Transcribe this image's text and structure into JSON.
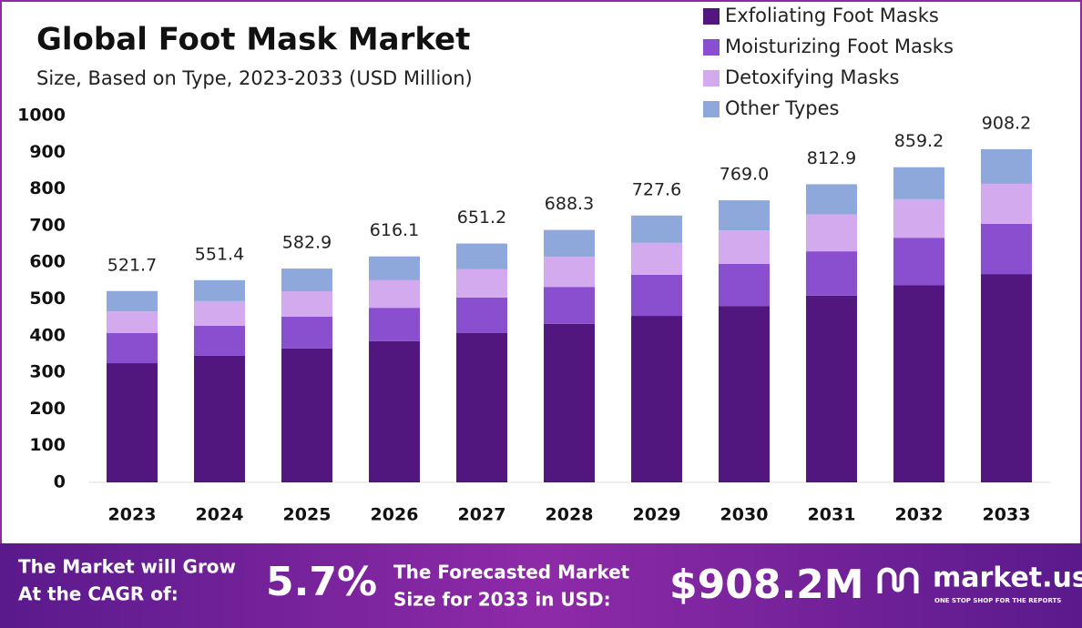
{
  "chart_data": {
    "type": "stacked_bar",
    "title": "Global Foot Mask Market",
    "subtitle": "Size, Based on Type, 2023-2033 (USD Million)",
    "categories": [
      "2023",
      "2024",
      "2025",
      "2026",
      "2027",
      "2028",
      "2029",
      "2030",
      "2031",
      "2032",
      "2033"
    ],
    "series": [
      {
        "name": "Exfoliating Foot Masks",
        "color": "#52177f",
        "values": [
          325,
          345,
          365,
          385,
          407,
          432,
          454,
          481,
          509,
          538,
          568
        ]
      },
      {
        "name": "Moisturizing Foot Masks",
        "color": "#8a4fcf",
        "values": [
          82,
          82,
          87,
          91,
          97,
          101,
          112,
          115,
          121,
          129,
          137
        ]
      },
      {
        "name": "Detoxifying Masks",
        "color": "#d4aaee",
        "values": [
          59,
          67,
          69,
          75,
          77,
          82,
          87,
          91,
          100,
          105,
          109
        ]
      },
      {
        "name": "Other Types",
        "color": "#8fa8dc",
        "values": [
          55.7,
          57.4,
          61.9,
          65.1,
          70.2,
          73.3,
          74.6,
          82,
          82.9,
          87.2,
          94.2
        ]
      }
    ],
    "totals": {
      "values": [
        521.7,
        551.4,
        582.9,
        616.1,
        651.2,
        688.3,
        727.6,
        769.0,
        812.9,
        859.2,
        908.2
      ],
      "value_labels": [
        "521.7",
        "551.4",
        "582.9",
        "616.1",
        "651.2",
        "688.3",
        "727.6",
        "769.0",
        "812.9",
        "859.2",
        "908.2"
      ]
    },
    "ylim": [
      0,
      1000
    ],
    "yticks": [
      0,
      100,
      200,
      300,
      400,
      500,
      600,
      700,
      800,
      900,
      1000
    ],
    "grid": false,
    "legend": "top-right"
  },
  "footer": {
    "cagr_text": [
      "The Market will Grow",
      "At the CAGR of:"
    ],
    "cagr_value": "5.7%",
    "forecast_text": [
      "The Forecasted Market",
      "Size for 2033 in USD:"
    ],
    "forecast_value": "$908.2M",
    "brand": "market.us",
    "tagline": "ONE STOP SHOP FOR THE REPORTS"
  }
}
